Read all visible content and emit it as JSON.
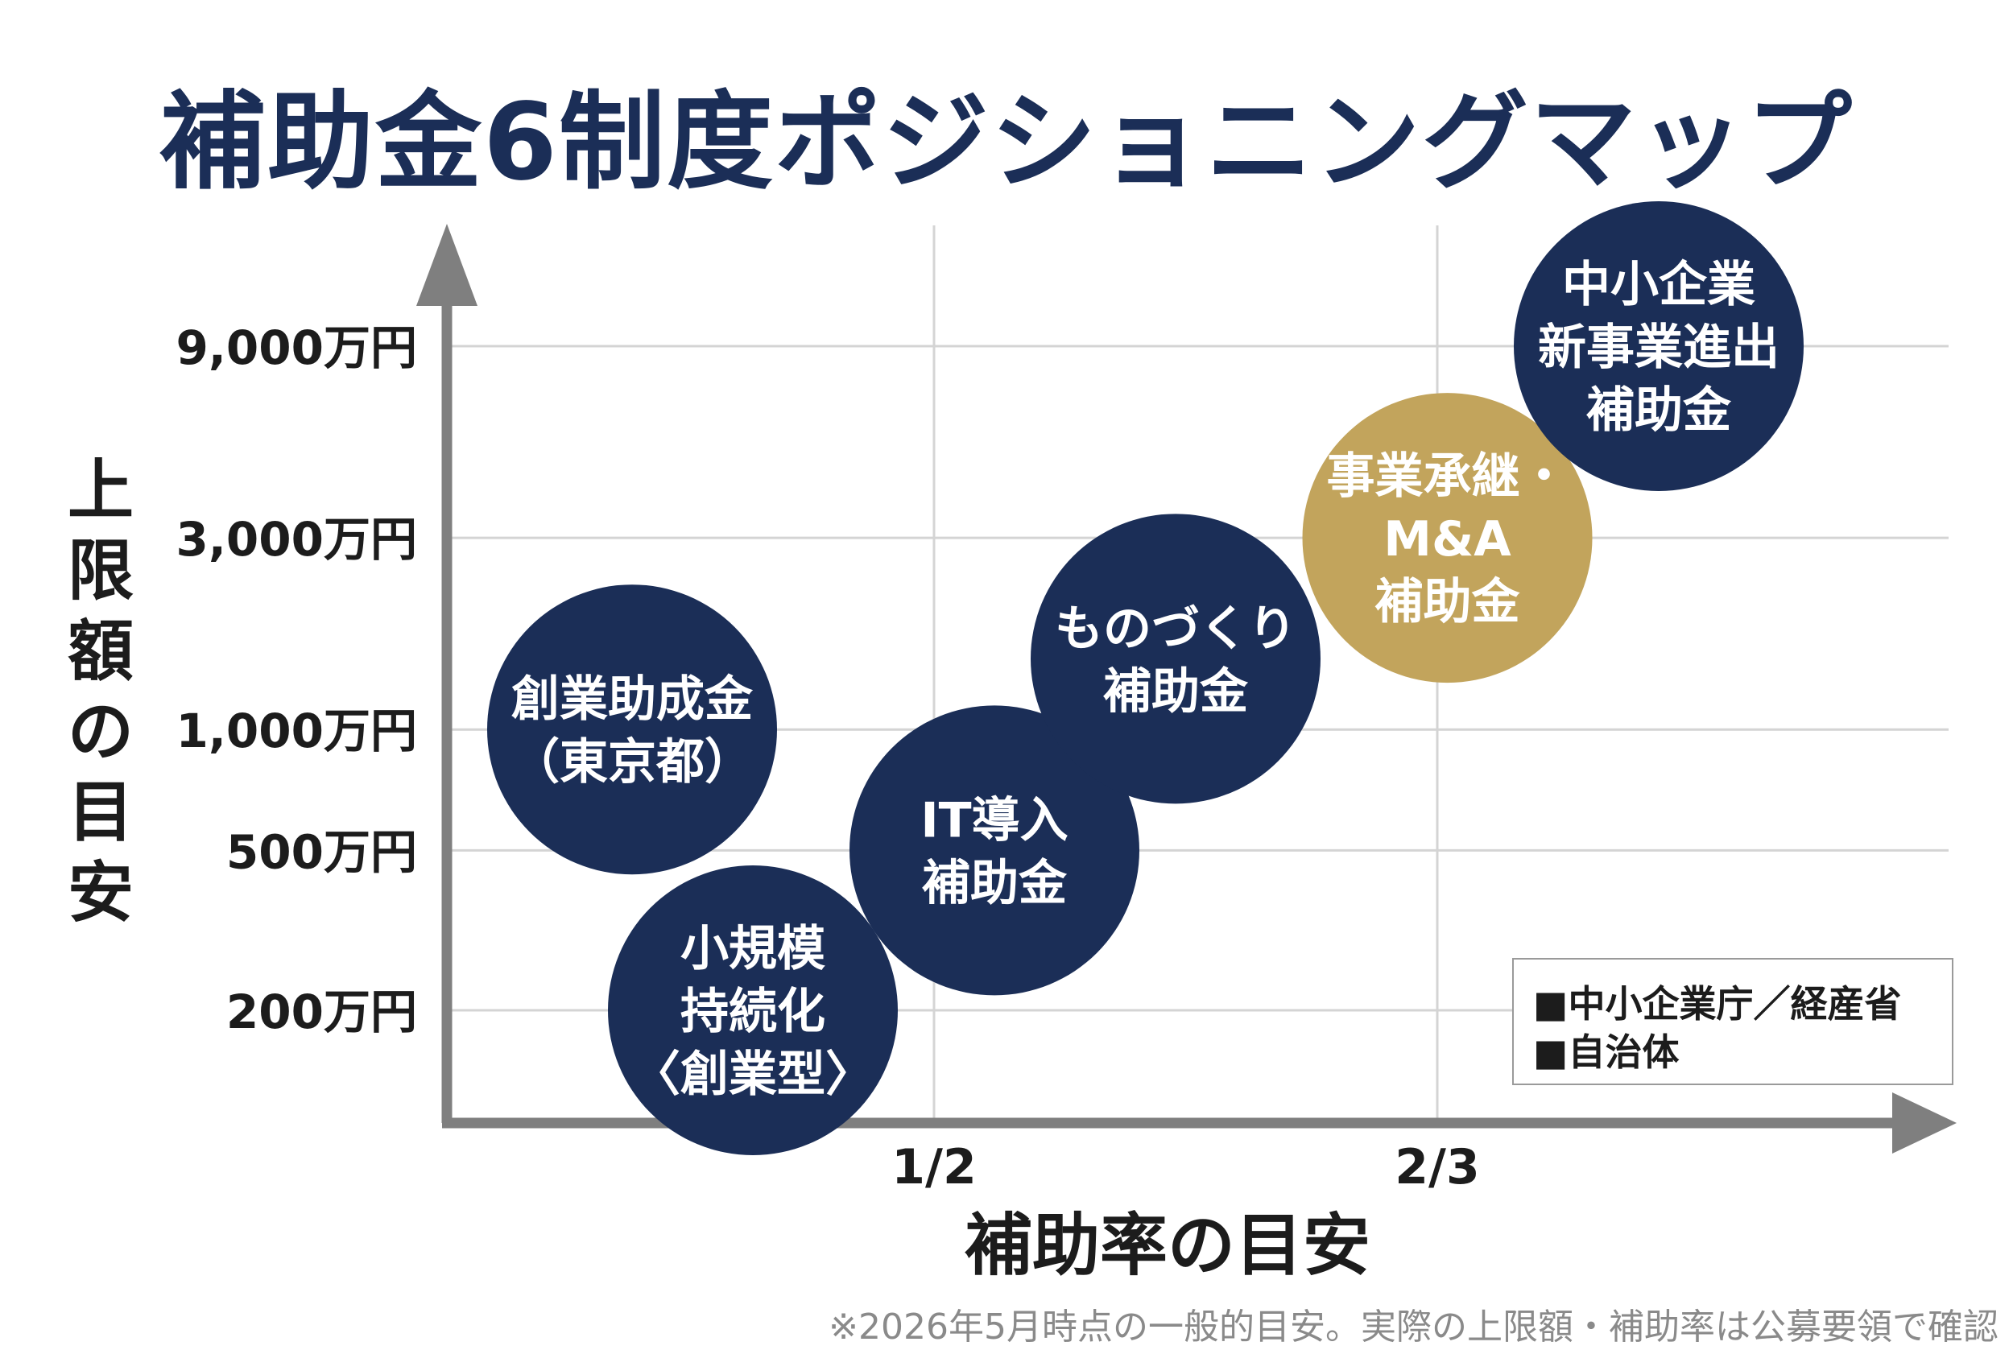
{
  "colors": {
    "navy": "#1b2e57",
    "gold": "#c2a45c",
    "axis": "#7f7f7f",
    "grid": "#d4d4d4"
  },
  "chart_data": {
    "type": "scatter",
    "title": "補助金6制度ポジショニングマップ",
    "xlabel": "補助率の目安",
    "ylabel": "上限額の目安",
    "x_ticks": [
      "1/2",
      "2/3"
    ],
    "y_ticks": [
      "200万円",
      "500万円",
      "1,000万円",
      "3,000万円",
      "9,000万円"
    ],
    "y_scale": "log",
    "grid": true,
    "legend_position": "bottom-right",
    "legend": [
      {
        "label": "■中小企業庁／経産省",
        "color": "#1b2e57"
      },
      {
        "label": "■自治体",
        "color": "#1b2e57"
      }
    ],
    "points": [
      {
        "lines": [
          "創業助成金",
          "（東京都）"
        ],
        "x": 0.4,
        "y": 1000,
        "color": "#1b2e57"
      },
      {
        "lines": [
          "小規模",
          "持続化",
          "〈創業型〉"
        ],
        "x": 0.44,
        "y": 200,
        "color": "#1b2e57"
      },
      {
        "lines": [
          "IT導入",
          "補助金"
        ],
        "x": 0.52,
        "y": 500,
        "color": "#1b2e57"
      },
      {
        "lines": [
          "ものづくり",
          "補助金"
        ],
        "x": 0.58,
        "y": 1500,
        "color": "#1b2e57"
      },
      {
        "lines": [
          "事業承継・",
          "M&A",
          "補助金"
        ],
        "x": 0.67,
        "y": 3000,
        "color": "#c2a45c"
      },
      {
        "lines": [
          "中小企業",
          "新事業進出",
          "補助金"
        ],
        "x": 0.74,
        "y": 9000,
        "color": "#1b2e57"
      }
    ]
  },
  "footnote": "※2026年5月時点の一般的目安。実際の上限額・補助率は公募要領で確認"
}
